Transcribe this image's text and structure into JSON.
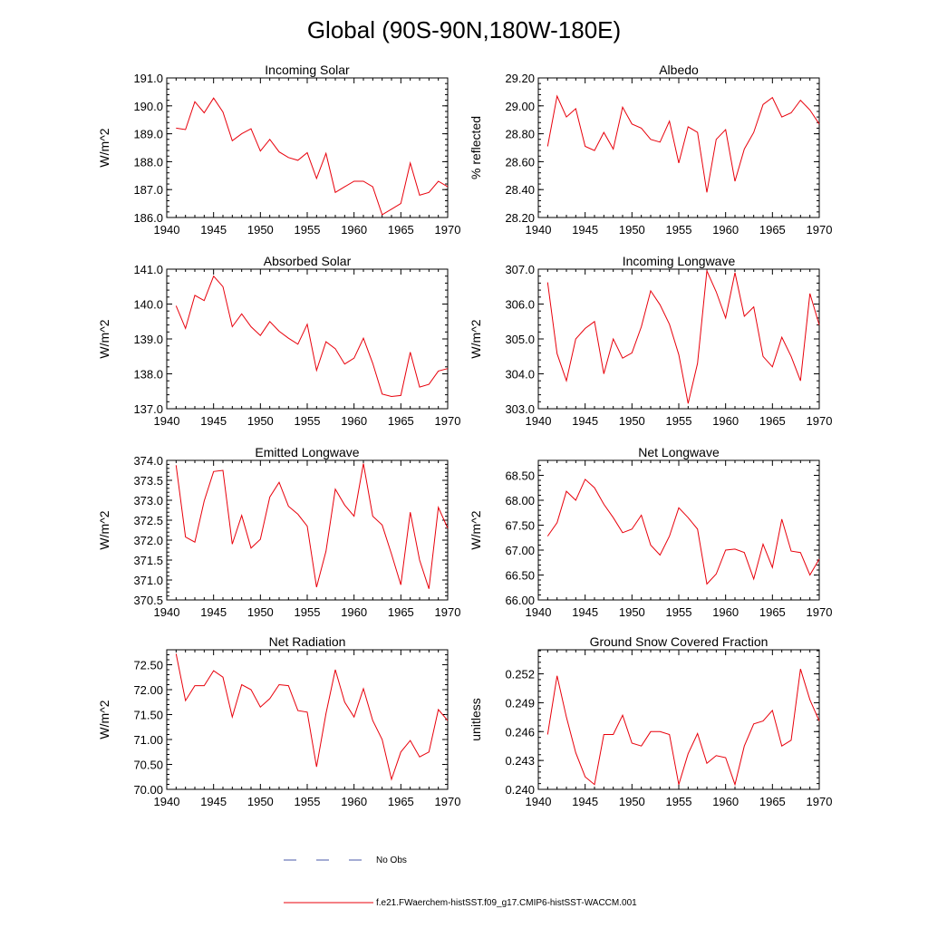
{
  "title": "Global (90S-90N,180W-180E)",
  "legend": {
    "obs_label": "No Obs",
    "obs_color": "#4a5aa8",
    "model_label": "f.e21.FWaerchem-histSST.f09_g17.CMIP6-histSST-WACCM.001",
    "model_color": "#e8000b"
  },
  "chart_data": [
    {
      "type": "line",
      "title": "Incoming Solar",
      "ylabel": "W/m^2",
      "xlim": [
        1940,
        1970
      ],
      "ylim": [
        186.0,
        191.0
      ],
      "x_ticks": [
        "1940",
        "1945",
        "1950",
        "1955",
        "1960",
        "1965",
        "1970"
      ],
      "y_ticks": [
        "186.0",
        "187.0",
        "188.0",
        "189.0",
        "190.0",
        "191.0"
      ],
      "x": [
        1941,
        1942,
        1943,
        1944,
        1945,
        1946,
        1947,
        1948,
        1949,
        1950,
        1951,
        1952,
        1953,
        1954,
        1955,
        1956,
        1957,
        1958,
        1959,
        1960,
        1961,
        1962,
        1963,
        1964,
        1965,
        1966,
        1967,
        1968,
        1969,
        1970
      ],
      "values": [
        189.2,
        189.15,
        190.15,
        189.75,
        190.28,
        189.78,
        188.75,
        189.0,
        189.18,
        188.38,
        188.8,
        188.35,
        188.15,
        188.05,
        188.32,
        187.4,
        188.3,
        186.9,
        187.1,
        187.3,
        187.3,
        187.1,
        186.1,
        186.3,
        186.5,
        187.95,
        186.8,
        186.9,
        187.3,
        187.1
      ]
    },
    {
      "type": "line",
      "title": "Albedo",
      "ylabel": "% reflected",
      "xlim": [
        1940,
        1970
      ],
      "ylim": [
        28.2,
        29.2
      ],
      "x_ticks": [
        "1940",
        "1945",
        "1950",
        "1955",
        "1960",
        "1965",
        "1970"
      ],
      "y_ticks": [
        "28.20",
        "28.40",
        "28.60",
        "28.80",
        "29.00",
        "29.20"
      ],
      "x": [
        1941,
        1942,
        1943,
        1944,
        1945,
        1946,
        1947,
        1948,
        1949,
        1950,
        1951,
        1952,
        1953,
        1954,
        1955,
        1956,
        1957,
        1958,
        1959,
        1960,
        1961,
        1962,
        1963,
        1964,
        1965,
        1966,
        1967,
        1968,
        1969,
        1970
      ],
      "values": [
        28.71,
        29.07,
        28.92,
        28.98,
        28.71,
        28.68,
        28.81,
        28.69,
        28.99,
        28.87,
        28.84,
        28.76,
        28.74,
        28.89,
        28.59,
        28.85,
        28.81,
        28.38,
        28.76,
        28.83,
        28.46,
        28.69,
        28.81,
        29.01,
        29.06,
        28.92,
        28.95,
        29.04,
        28.97,
        28.87
      ]
    },
    {
      "type": "line",
      "title": "Absorbed Solar",
      "ylabel": "W/m^2",
      "xlim": [
        1940,
        1970
      ],
      "ylim": [
        137.0,
        141.0
      ],
      "x_ticks": [
        "1940",
        "1945",
        "1950",
        "1955",
        "1960",
        "1965",
        "1970"
      ],
      "y_ticks": [
        "137.0",
        "138.0",
        "139.0",
        "140.0",
        "141.0"
      ],
      "x": [
        1941,
        1942,
        1943,
        1944,
        1945,
        1946,
        1947,
        1948,
        1949,
        1950,
        1951,
        1952,
        1953,
        1954,
        1955,
        1956,
        1957,
        1958,
        1959,
        1960,
        1961,
        1962,
        1963,
        1964,
        1965,
        1966,
        1967,
        1968,
        1969,
        1970
      ],
      "values": [
        139.95,
        139.3,
        140.25,
        140.1,
        140.8,
        140.5,
        139.35,
        139.72,
        139.35,
        139.1,
        139.5,
        139.22,
        139.02,
        138.85,
        139.42,
        138.1,
        138.92,
        138.72,
        138.28,
        138.45,
        139.02,
        138.3,
        137.42,
        137.35,
        137.38,
        138.62,
        137.62,
        137.7,
        138.08,
        138.15
      ]
    },
    {
      "type": "line",
      "title": "Incoming Longwave",
      "ylabel": "W/m^2",
      "xlim": [
        1940,
        1970
      ],
      "ylim": [
        303.0,
        307.0
      ],
      "x_ticks": [
        "1940",
        "1945",
        "1950",
        "1955",
        "1960",
        "1965",
        "1970"
      ],
      "y_ticks": [
        "303.0",
        "304.0",
        "305.0",
        "306.0",
        "307.0"
      ],
      "x": [
        1941,
        1942,
        1943,
        1944,
        1945,
        1946,
        1947,
        1948,
        1949,
        1950,
        1951,
        1952,
        1953,
        1954,
        1955,
        1956,
        1957,
        1958,
        1959,
        1960,
        1961,
        1962,
        1963,
        1964,
        1965,
        1966,
        1967,
        1968,
        1969,
        1970
      ],
      "values": [
        306.62,
        304.58,
        303.8,
        305.0,
        305.3,
        305.5,
        304.0,
        305.0,
        304.45,
        304.6,
        305.35,
        306.38,
        305.98,
        305.42,
        304.55,
        303.15,
        304.3,
        306.95,
        306.35,
        305.6,
        306.9,
        305.65,
        305.92,
        304.5,
        304.2,
        305.05,
        304.5,
        303.8,
        306.3,
        305.4
      ]
    },
    {
      "type": "line",
      "title": "Emitted Longwave",
      "ylabel": "W/m^2",
      "xlim": [
        1940,
        1970
      ],
      "ylim": [
        370.5,
        374.0
      ],
      "x_ticks": [
        "1940",
        "1945",
        "1950",
        "1955",
        "1960",
        "1965",
        "1970"
      ],
      "y_ticks": [
        "370.5",
        "371.0",
        "371.5",
        "372.0",
        "372.5",
        "373.0",
        "373.5",
        "374.0"
      ],
      "x": [
        1941,
        1942,
        1943,
        1944,
        1945,
        1946,
        1947,
        1948,
        1949,
        1950,
        1951,
        1952,
        1953,
        1954,
        1955,
        1956,
        1957,
        1958,
        1959,
        1960,
        1961,
        1962,
        1963,
        1964,
        1965,
        1966,
        1967,
        1968,
        1969,
        1970
      ],
      "values": [
        373.88,
        372.08,
        371.95,
        372.98,
        373.72,
        373.75,
        371.9,
        372.62,
        371.8,
        372.02,
        373.08,
        373.45,
        372.85,
        372.65,
        372.35,
        370.82,
        371.72,
        373.28,
        372.88,
        372.6,
        373.92,
        372.6,
        372.38,
        371.65,
        370.88,
        372.7,
        371.5,
        370.78,
        372.82,
        372.3
      ]
    },
    {
      "type": "line",
      "title": "Net Longwave",
      "ylabel": "W/m^2",
      "xlim": [
        1940,
        1970
      ],
      "ylim": [
        66.0,
        68.8
      ],
      "x_ticks": [
        "1940",
        "1945",
        "1950",
        "1955",
        "1960",
        "1965",
        "1970"
      ],
      "y_ticks": [
        "66.00",
        "66.50",
        "67.00",
        "67.50",
        "68.00",
        "68.50"
      ],
      "x": [
        1941,
        1942,
        1943,
        1944,
        1945,
        1946,
        1947,
        1948,
        1949,
        1950,
        1951,
        1952,
        1953,
        1954,
        1955,
        1956,
        1957,
        1958,
        1959,
        1960,
        1961,
        1962,
        1963,
        1964,
        1965,
        1966,
        1967,
        1968,
        1969,
        1970
      ],
      "values": [
        67.28,
        67.55,
        68.18,
        68.0,
        68.42,
        68.25,
        67.92,
        67.65,
        67.35,
        67.42,
        67.7,
        67.1,
        66.9,
        67.28,
        67.85,
        67.65,
        67.42,
        66.32,
        66.52,
        67.0,
        67.02,
        66.95,
        66.42,
        67.12,
        66.65,
        67.62,
        66.98,
        66.95,
        66.5,
        66.82
      ]
    },
    {
      "type": "line",
      "title": "Net Radiation",
      "ylabel": "W/m^2",
      "xlim": [
        1940,
        1970
      ],
      "ylim": [
        70.0,
        72.8
      ],
      "x_ticks": [
        "1940",
        "1945",
        "1950",
        "1955",
        "1960",
        "1965",
        "1970"
      ],
      "y_ticks": [
        "70.00",
        "70.50",
        "71.00",
        "71.50",
        "72.00",
        "72.50"
      ],
      "x": [
        1941,
        1942,
        1943,
        1944,
        1945,
        1946,
        1947,
        1948,
        1949,
        1950,
        1951,
        1952,
        1953,
        1954,
        1955,
        1956,
        1957,
        1958,
        1959,
        1960,
        1961,
        1962,
        1963,
        1964,
        1965,
        1966,
        1967,
        1968,
        1969,
        1970
      ],
      "values": [
        72.72,
        71.78,
        72.08,
        72.08,
        72.38,
        72.25,
        71.45,
        72.1,
        72.0,
        71.65,
        71.82,
        72.1,
        72.08,
        71.58,
        71.55,
        70.45,
        71.52,
        72.4,
        71.75,
        71.45,
        72.02,
        71.38,
        71.0,
        70.2,
        70.75,
        70.98,
        70.65,
        70.75,
        71.6,
        71.38
      ]
    },
    {
      "type": "line",
      "title": "Ground Snow Covered Fraction",
      "ylabel": "unitless",
      "xlim": [
        1940,
        1970
      ],
      "ylim": [
        0.24,
        0.2545
      ],
      "x_ticks": [
        "1940",
        "1945",
        "1950",
        "1955",
        "1960",
        "1965",
        "1970"
      ],
      "y_ticks": [
        "0.240",
        "0.243",
        "0.246",
        "0.249",
        "0.252"
      ],
      "x": [
        1941,
        1942,
        1943,
        1944,
        1945,
        1946,
        1947,
        1948,
        1949,
        1950,
        1951,
        1952,
        1953,
        1954,
        1955,
        1956,
        1957,
        1958,
        1959,
        1960,
        1961,
        1962,
        1963,
        1964,
        1965,
        1966,
        1967,
        1968,
        1969,
        1970
      ],
      "values": [
        0.2457,
        0.2518,
        0.2475,
        0.2438,
        0.2413,
        0.2405,
        0.2457,
        0.2457,
        0.2477,
        0.2448,
        0.2445,
        0.246,
        0.246,
        0.2457,
        0.2405,
        0.2437,
        0.2458,
        0.2427,
        0.2435,
        0.2433,
        0.2405,
        0.2445,
        0.2468,
        0.2471,
        0.2482,
        0.2445,
        0.2451,
        0.2525,
        0.2493,
        0.2471
      ]
    }
  ]
}
